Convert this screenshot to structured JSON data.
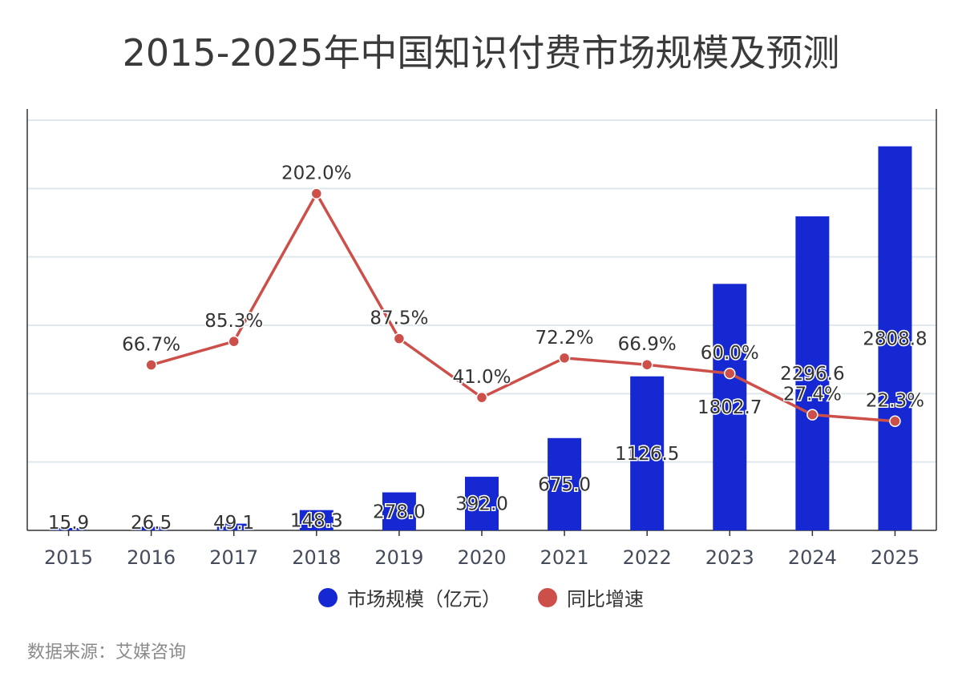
{
  "title": "2015-2025年中国知识付费市场规模及预测",
  "source": "数据来源：艾媒咨询",
  "chart_data": {
    "type": "bar+line",
    "title": "2015-2025年中国知识付费市场规模及预测",
    "categories": [
      "2015",
      "2016",
      "2017",
      "2018",
      "2019",
      "2020",
      "2021",
      "2022",
      "2023",
      "2024",
      "2025"
    ],
    "series": [
      {
        "name": "市场规模（亿元）",
        "type": "bar",
        "color": "#1628d1",
        "values": [
          15.9,
          26.5,
          49.1,
          148.3,
          278.0,
          392.0,
          675.0,
          1126.5,
          1802.7,
          2296.6,
          2808.8
        ]
      },
      {
        "name": "同比增速",
        "type": "line",
        "color": "#cd4f4a",
        "values": [
          null,
          66.7,
          85.3,
          202.0,
          87.5,
          41.0,
          72.2,
          66.9,
          60.0,
          27.4,
          22.3
        ]
      }
    ],
    "bar_labels": [
      "15.9",
      "26.5",
      "49.1",
      "148.3",
      "278.0",
      "392.0",
      "675.0",
      "1126.5",
      "1802.7",
      "2296.6",
      "2808.8"
    ],
    "line_labels": [
      "",
      "66.7%",
      "85.3%",
      "202.0%",
      "87.5%",
      "41.0%",
      "72.2%",
      "66.9%",
      "60.0%",
      "27.4%",
      "22.3%"
    ],
    "ylim_bar": [
      0,
      3000
    ],
    "grid": true,
    "legend_position": "bottom"
  }
}
